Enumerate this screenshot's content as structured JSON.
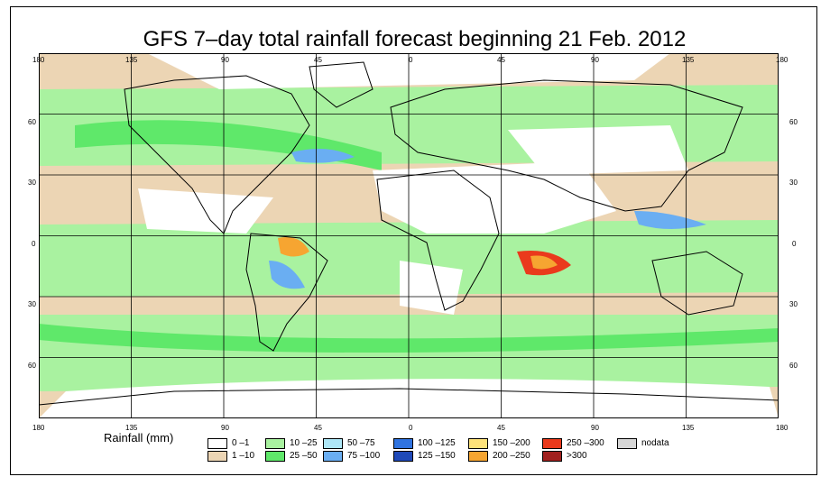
{
  "title": "GFS 7–day total rainfall forecast beginning 21 Feb. 2012",
  "lon_labels": [
    "180",
    "135",
    "90",
    "45",
    "0",
    "45",
    "90",
    "135",
    "180"
  ],
  "lat_labels": [
    "60",
    "30",
    "0",
    "30",
    "60"
  ],
  "legend": {
    "label": "Rainfall (mm)",
    "items": [
      {
        "range": "0 –1",
        "color": "#ffffff"
      },
      {
        "range": "1 –10",
        "color": "#ecd5b4"
      },
      {
        "range": "10 –25",
        "color": "#a9f2a0"
      },
      {
        "range": "25 –50",
        "color": "#5fe86a"
      },
      {
        "range": "50 –75",
        "color": "#aee7f7"
      },
      {
        "range": "75 –100",
        "color": "#6aaef2"
      },
      {
        "range": "100 –125",
        "color": "#2f73e0"
      },
      {
        "range": "125 –150",
        "color": "#1f49b8"
      },
      {
        "range": "150 –200",
        "color": "#fde27a"
      },
      {
        "range": "200 –250",
        "color": "#f6a531"
      },
      {
        "range": "250 –300",
        "color": "#ea3a1c"
      },
      {
        "range": ">300",
        "color": "#a0201e"
      },
      {
        "range": "nodata",
        "color": "#d6d6d6"
      }
    ]
  }
}
